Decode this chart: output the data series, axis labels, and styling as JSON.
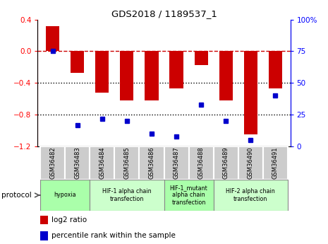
{
  "title": "GDS2018 / 1189537_1",
  "samples": [
    "GSM36482",
    "GSM36483",
    "GSM36484",
    "GSM36485",
    "GSM36486",
    "GSM36487",
    "GSM36488",
    "GSM36489",
    "GSM36490",
    "GSM36491"
  ],
  "log2_ratio": [
    0.32,
    -0.27,
    -0.52,
    -0.62,
    -0.62,
    -0.47,
    -0.17,
    -0.62,
    -1.05,
    -0.47
  ],
  "percentile_rank": [
    75,
    17,
    22,
    20,
    10,
    8,
    33,
    20,
    5,
    40
  ],
  "ylim_left": [
    -1.2,
    0.4
  ],
  "ylim_right": [
    0,
    100
  ],
  "protocols": [
    {
      "label": "hypoxia",
      "start": 0,
      "end": 2,
      "color": "#aaffaa"
    },
    {
      "label": "HIF-1 alpha chain\ntransfection",
      "start": 2,
      "end": 5,
      "color": "#ccffcc"
    },
    {
      "label": "HIF-1_mutant\nalpha chain\ntransfection",
      "start": 5,
      "end": 7,
      "color": "#aaffaa"
    },
    {
      "label": "HIF-2 alpha chain\ntransfection",
      "start": 7,
      "end": 10,
      "color": "#ccffcc"
    }
  ],
  "bar_color": "#cc0000",
  "dot_color": "#0000cc",
  "hline_color": "#cc0000",
  "dotted_color": "#000000",
  "bar_width": 0.55
}
